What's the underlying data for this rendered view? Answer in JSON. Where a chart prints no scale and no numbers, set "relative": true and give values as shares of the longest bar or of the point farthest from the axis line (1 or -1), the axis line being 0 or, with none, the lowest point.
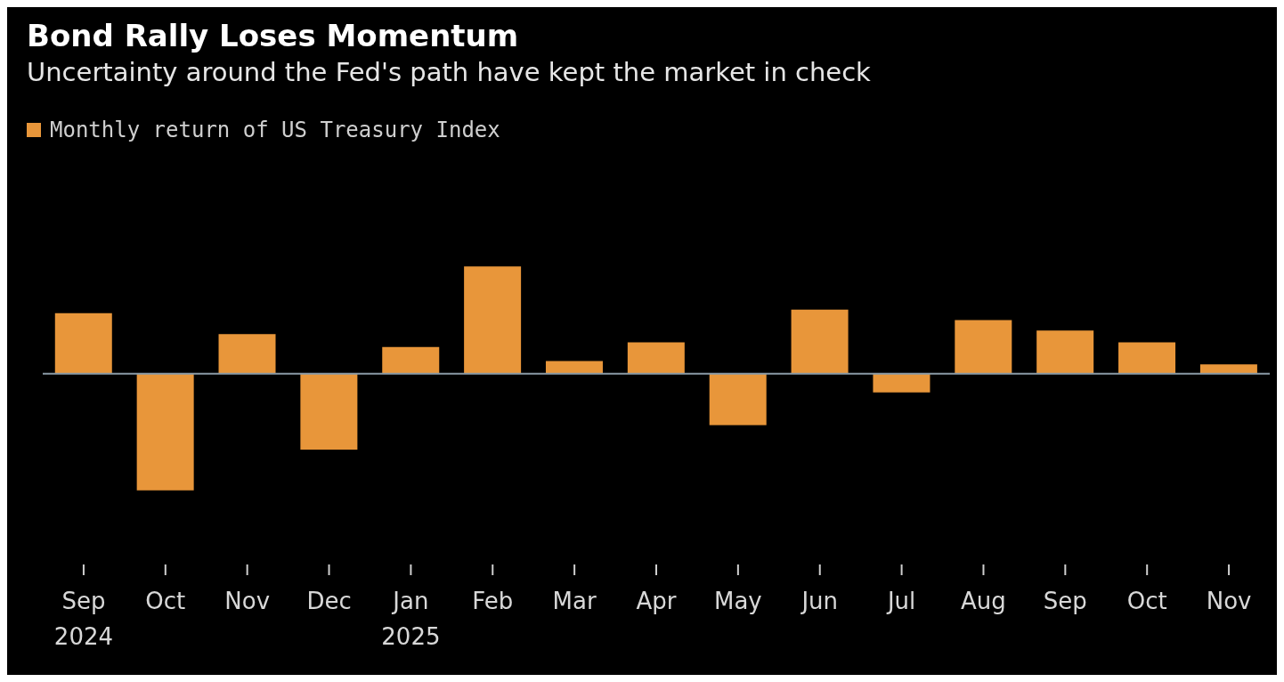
{
  "chart_data": {
    "type": "bar",
    "title": "Bond Rally Loses Momentum",
    "subtitle": "Uncertainty around the Fed's path have kept the market in check",
    "categories": [
      "Sep 2024",
      "Oct",
      "Nov",
      "Dec",
      "Jan 2025",
      "Feb",
      "Mar",
      "Apr",
      "May",
      "Jun",
      "Jul",
      "Aug",
      "Sep",
      "Oct",
      "Nov"
    ],
    "relative": true,
    "legend": "top left",
    "grid": false,
    "series": [
      {
        "name": "Monthly return of US Treasury Index",
        "color": "#e8963a",
        "values": [
          0.52,
          -1,
          0.34,
          -0.65,
          0.23,
          0.92,
          0.11,
          0.27,
          -0.44,
          0.55,
          -0.16,
          0.46,
          0.37,
          0.27,
          0.08
        ]
      }
    ]
  }
}
